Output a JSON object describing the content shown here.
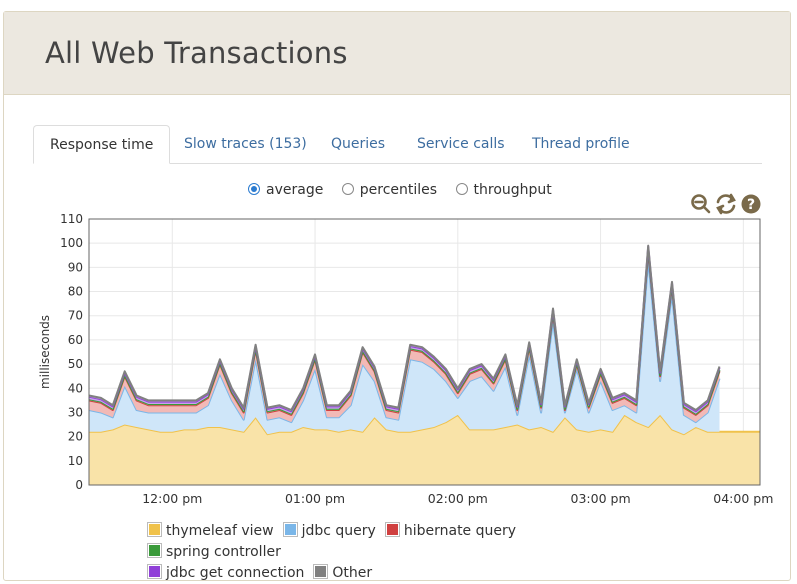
{
  "header": {
    "title": "All Web Transactions"
  },
  "tabs": [
    {
      "label": "Response time",
      "active": true
    },
    {
      "label": "Slow traces (153)",
      "active": false
    },
    {
      "label": "Queries",
      "active": false
    },
    {
      "label": "Service calls",
      "active": false
    },
    {
      "label": "Thread profile",
      "active": false
    }
  ],
  "view_options": [
    {
      "label": "average",
      "selected": true
    },
    {
      "label": "percentiles",
      "selected": false
    },
    {
      "label": "throughput",
      "selected": false
    }
  ],
  "toolbar_icons": [
    "zoom-out-icon",
    "refresh-icon",
    "help-icon"
  ],
  "colors": {
    "accent": "#2b7bd0",
    "link": "#3d6da0",
    "icon": "#7a6a4a"
  },
  "chart_data": {
    "type": "area",
    "stacked": true,
    "ylabel": "milliseconds",
    "xlabel": "",
    "ylim": [
      0,
      110
    ],
    "yticks": [
      0,
      10,
      20,
      30,
      40,
      50,
      60,
      70,
      80,
      90,
      100,
      110
    ],
    "xlim_minutes": [
      -17.5,
      123.5
    ],
    "xticks": [
      {
        "minute": 0,
        "label": "12:00 pm"
      },
      {
        "minute": 30,
        "label": "01:00 pm"
      },
      {
        "minute": 60,
        "label": "02:00 pm"
      },
      {
        "minute": 90,
        "label": "03:00 pm"
      },
      {
        "minute": 120,
        "label": "04:00 pm"
      }
    ],
    "grid": true,
    "legend_position": "bottom",
    "x_minutes": [
      -17.5,
      -15,
      -12.5,
      -10,
      -7.5,
      -5,
      -2.5,
      0,
      2.5,
      5,
      7.5,
      10,
      12.5,
      15,
      17.5,
      20,
      22.5,
      25,
      27.5,
      30,
      32.5,
      35,
      37.5,
      40,
      42.5,
      45,
      47.5,
      50,
      52.5,
      55,
      57.5,
      60,
      62.5,
      65,
      67.5,
      70,
      72.5,
      75,
      77.5,
      80,
      82.5,
      85,
      87.5,
      90,
      92.5,
      95,
      97.5,
      100,
      102.5,
      105,
      107.5,
      110,
      112.5,
      115,
      117.5,
      120,
      122.5,
      123.5
    ],
    "series": [
      {
        "name": "thymeleaf view",
        "color": "#f0c24b",
        "fill": "#f9e3a8",
        "values": [
          22,
          22,
          23,
          25,
          24,
          23,
          22,
          22,
          23,
          23,
          24,
          24,
          23,
          22,
          28,
          21,
          22,
          22,
          24,
          23,
          23,
          22,
          23,
          22,
          28,
          23,
          22,
          22,
          23,
          24,
          26,
          29,
          23,
          23,
          23,
          24,
          25,
          23,
          24,
          22,
          28,
          23,
          22,
          23,
          22,
          29,
          26,
          24,
          29,
          23,
          21,
          24,
          22,
          22,
          22,
          22,
          22,
          22
        ]
      },
      {
        "name": "jdbc query",
        "color": "#7ab6e8",
        "fill": "#cfe6f9",
        "values": [
          9,
          8,
          5,
          16,
          7,
          7,
          8,
          8,
          7,
          7,
          9,
          22,
          12,
          5,
          24,
          6,
          6,
          4,
          11,
          25,
          5,
          6,
          10,
          28,
          15,
          5,
          5,
          30,
          28,
          24,
          17,
          7,
          20,
          22,
          16,
          25,
          4,
          31,
          6,
          46,
          2,
          25,
          8,
          20,
          9,
          4,
          4,
          69,
          14,
          56,
          8,
          2,
          8,
          22,
          0,
          0,
          0,
          0
        ]
      },
      {
        "name": "hibernate query",
        "color": "#d04040",
        "fill": "#f2b9b6",
        "values": [
          4,
          4,
          3,
          4,
          4,
          3,
          3,
          3,
          3,
          3,
          3,
          4,
          3,
          3,
          4,
          3,
          3,
          3,
          3,
          4,
          3,
          3,
          4,
          5,
          4,
          3,
          3,
          4,
          4,
          3,
          3,
          2,
          3,
          3,
          3,
          3,
          2,
          3,
          2,
          3,
          1,
          2,
          2,
          3,
          3,
          3,
          3,
          4,
          2,
          3,
          3,
          3,
          3,
          3,
          0,
          0,
          0,
          0
        ]
      },
      {
        "name": "spring controller",
        "color": "#3a9a3a",
        "fill": "#9fd39f",
        "values": [
          0.5,
          0.5,
          0.5,
          0.5,
          0.5,
          0.5,
          0.5,
          0.5,
          0.5,
          0.5,
          0.5,
          0.5,
          0.5,
          0.5,
          0.5,
          0.5,
          0.5,
          0.5,
          0.5,
          0.5,
          0.5,
          0.5,
          0.5,
          0.5,
          0.5,
          0.5,
          0.5,
          0.5,
          0.5,
          0.5,
          0.5,
          0.5,
          0.5,
          0.5,
          0.5,
          0.5,
          0.5,
          0.5,
          0.5,
          0.5,
          0.5,
          0.5,
          0.5,
          0.5,
          0.5,
          0.5,
          0.5,
          0.5,
          0.5,
          0.5,
          0.5,
          0.5,
          0.5,
          0.5,
          0,
          0,
          0,
          0
        ]
      },
      {
        "name": "jdbc get connection",
        "color": "#9040d8",
        "fill": "#c9a2ee",
        "values": [
          1,
          1,
          1,
          1,
          1,
          1,
          1,
          1,
          1,
          1,
          1,
          1,
          1,
          1,
          1,
          1,
          1,
          1,
          1,
          1,
          1,
          1,
          1,
          1,
          1,
          1,
          1,
          1,
          1,
          1,
          1,
          1,
          1,
          1,
          1,
          1,
          1,
          1,
          1,
          1,
          1,
          1,
          1,
          1,
          1,
          1,
          1,
          1,
          1,
          1,
          1,
          1,
          1,
          1,
          0,
          0,
          0,
          0
        ]
      },
      {
        "name": "Other",
        "color": "#808080",
        "fill": "#bdbdbd",
        "values": [
          0.5,
          0.5,
          0.5,
          0.5,
          0.5,
          0.5,
          0.5,
          0.5,
          0.5,
          0.5,
          0.5,
          0.5,
          0.5,
          0.5,
          0.5,
          0.5,
          0.5,
          0.5,
          0.5,
          0.5,
          0.5,
          0.5,
          0.5,
          0.5,
          0.5,
          0.5,
          0.5,
          0.5,
          0.5,
          0.5,
          0.5,
          0.5,
          0.5,
          0.5,
          0.5,
          0.5,
          0.5,
          0.5,
          0.5,
          0.5,
          0.5,
          0.5,
          0.5,
          0.5,
          0.5,
          0.5,
          0.5,
          0.5,
          0.5,
          0.5,
          0.5,
          0.5,
          0.5,
          0.5,
          0,
          0,
          0,
          0
        ]
      }
    ]
  }
}
